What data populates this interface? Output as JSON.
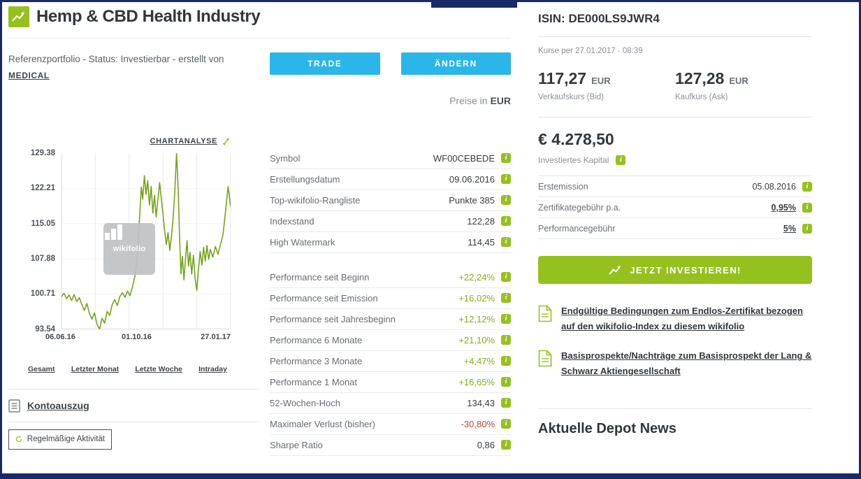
{
  "colors": {
    "navy": "#182b66",
    "green": "#95c11f",
    "cyan": "#2ab6e9",
    "text_dark": "#32373c",
    "text_muted": "#8a9095",
    "positive": "#84ad18",
    "negative": "#c0443a",
    "chart_line": "#76a21c"
  },
  "icons": {
    "info_glyph": "i"
  },
  "header": {
    "title": "Hemp & CBD Health Industry"
  },
  "status": {
    "line1": "Referenzportfolio - Status: Investierbar - erstellt von",
    "creator": "MEDICAL"
  },
  "actions": {
    "trade": "TRADE",
    "change": "ÄNDERN"
  },
  "price_note": {
    "prefix": "Preise in",
    "currency": "EUR"
  },
  "chart": {
    "analysis_label": "CHARTANALYSE",
    "watermark": "wikifolio",
    "y_max": 129.38,
    "y_min": 93.54,
    "y_ticks": [
      "129.38",
      "122.21",
      "115.05",
      "107.88",
      "100.71",
      "93.54"
    ],
    "x_ticks": [
      "06.06.16",
      "01.10.16",
      "27.01.17"
    ],
    "range_tabs": [
      "Gesamt",
      "Letzter Monat",
      "Letzte Woche",
      "Intraday"
    ],
    "series_points": [
      [
        0.0,
        100.2
      ],
      [
        0.015,
        100.9
      ],
      [
        0.03,
        99.8
      ],
      [
        0.045,
        100.5
      ],
      [
        0.06,
        99.4
      ],
      [
        0.075,
        100.6
      ],
      [
        0.09,
        99.2
      ],
      [
        0.105,
        100.0
      ],
      [
        0.12,
        98.6
      ],
      [
        0.135,
        97.4
      ],
      [
        0.15,
        98.8
      ],
      [
        0.165,
        96.8
      ],
      [
        0.18,
        95.6
      ],
      [
        0.195,
        96.9
      ],
      [
        0.21,
        94.6
      ],
      [
        0.225,
        93.6
      ],
      [
        0.24,
        95.8
      ],
      [
        0.255,
        94.8
      ],
      [
        0.27,
        97.2
      ],
      [
        0.285,
        96.4
      ],
      [
        0.3,
        98.6
      ],
      [
        0.315,
        99.6
      ],
      [
        0.33,
        98.4
      ],
      [
        0.345,
        100.2
      ],
      [
        0.36,
        101.0
      ],
      [
        0.375,
        100.1
      ],
      [
        0.39,
        101.3
      ],
      [
        0.405,
        100.4
      ],
      [
        0.42,
        102.2
      ],
      [
        0.435,
        104.5
      ],
      [
        0.45,
        109.0
      ],
      [
        0.462,
        116.5
      ],
      [
        0.472,
        122.5
      ],
      [
        0.48,
        120.0
      ],
      [
        0.49,
        124.8
      ],
      [
        0.5,
        121.0
      ],
      [
        0.51,
        123.8
      ],
      [
        0.52,
        118.8
      ],
      [
        0.53,
        122.6
      ],
      [
        0.54,
        117.2
      ],
      [
        0.55,
        120.8
      ],
      [
        0.56,
        116.4
      ],
      [
        0.57,
        119.8
      ],
      [
        0.58,
        123.4
      ],
      [
        0.59,
        120.2
      ],
      [
        0.6,
        117.0
      ],
      [
        0.61,
        113.6
      ],
      [
        0.62,
        110.8
      ],
      [
        0.63,
        113.2
      ],
      [
        0.64,
        109.6
      ],
      [
        0.65,
        112.4
      ],
      [
        0.66,
        116.2
      ],
      [
        0.67,
        121.5
      ],
      [
        0.68,
        129.38
      ],
      [
        0.69,
        122.0
      ],
      [
        0.698,
        112.5
      ],
      [
        0.706,
        104.8
      ],
      [
        0.715,
        108.4
      ],
      [
        0.724,
        103.6
      ],
      [
        0.733,
        107.8
      ],
      [
        0.742,
        111.6
      ],
      [
        0.751,
        106.4
      ],
      [
        0.76,
        109.2
      ],
      [
        0.77,
        104.8
      ],
      [
        0.78,
        108.6
      ],
      [
        0.79,
        103.8
      ],
      [
        0.8,
        101.4
      ],
      [
        0.81,
        105.8
      ],
      [
        0.82,
        109.4
      ],
      [
        0.83,
        106.6
      ],
      [
        0.84,
        110.2
      ],
      [
        0.85,
        107.4
      ],
      [
        0.86,
        110.6
      ],
      [
        0.87,
        107.8
      ],
      [
        0.88,
        109.8
      ],
      [
        0.895,
        108.2
      ],
      [
        0.91,
        110.4
      ],
      [
        0.925,
        108.8
      ],
      [
        0.94,
        110.8
      ],
      [
        0.955,
        112.8
      ],
      [
        0.97,
        117.5
      ],
      [
        0.985,
        122.6
      ],
      [
        1.0,
        118.5
      ]
    ]
  },
  "left_links": {
    "kontoauszug": "Kontoauszug",
    "activity": "Regelmäßige Aktivität"
  },
  "stats": {
    "rows": [
      {
        "label": "Symbol",
        "value": "WF00CEBEDE",
        "tone": ""
      },
      {
        "label": "Erstellungsdatum",
        "value": "09.06.2016",
        "tone": ""
      },
      {
        "label": "Top-wikifolio-Rangliste",
        "value": "Punkte 385",
        "tone": ""
      },
      {
        "label": "Indexstand",
        "value": "122,28",
        "tone": ""
      },
      {
        "label": "High Watermark",
        "value": "114,45",
        "tone": ""
      },
      {
        "spacer": true
      },
      {
        "label": "Performance seit Beginn",
        "value": "+22,24%",
        "tone": "pos"
      },
      {
        "label": "Performance seit Emission",
        "value": "+16,02%",
        "tone": "pos"
      },
      {
        "label": "Performance seit Jahresbeginn",
        "value": "+12,12%",
        "tone": "pos"
      },
      {
        "label": "Performance 6 Monate",
        "value": "+21,10%",
        "tone": "pos"
      },
      {
        "label": "Performance 3 Monate",
        "value": "+4,47%",
        "tone": "pos"
      },
      {
        "label": "Performance 1 Monat",
        "value": "+16,65%",
        "tone": "pos"
      },
      {
        "label": "52-Wochen-Hoch",
        "value": "134,43",
        "tone": ""
      },
      {
        "label": "Maximaler Verlust (bisher)",
        "value": "-30,80%",
        "tone": "neg"
      },
      {
        "label": "Sharpe Ratio",
        "value": "0,86",
        "tone": ""
      }
    ]
  },
  "side": {
    "isin": "ISIN: DE000LS9JWR4",
    "quote_time": "Kurse per 27.01.2017 - 08:39",
    "bid": {
      "value": "117,27",
      "currency": "EUR",
      "label": "Verkaufskurs (Bid)"
    },
    "ask": {
      "value": "127,28",
      "currency": "EUR",
      "label": "Kaufkurs (Ask)"
    },
    "capital": {
      "value": "€ 4.278,50",
      "label": "Investiertes Kapital"
    },
    "detail_rows": [
      {
        "label": "Erstemission",
        "value": "05.08.2016",
        "underline": false
      },
      {
        "label": "Zertifikategebühr p.a.",
        "value": "0,95%",
        "underline": true
      },
      {
        "label": "Performancegebühr",
        "value": "5%",
        "underline": true
      }
    ],
    "invest_button": "JETZT INVESTIEREN!",
    "documents": [
      "Endgültige Bedingungen zum Endlos-Zertifikat bezogen auf den wikifolio-Index zu diesem wikifolio",
      "Basisprospekte/Nachträge zum Basisprospekt der Lang & Schwarz Aktiengesellschaft"
    ],
    "news_heading": "Aktuelle Depot News"
  }
}
